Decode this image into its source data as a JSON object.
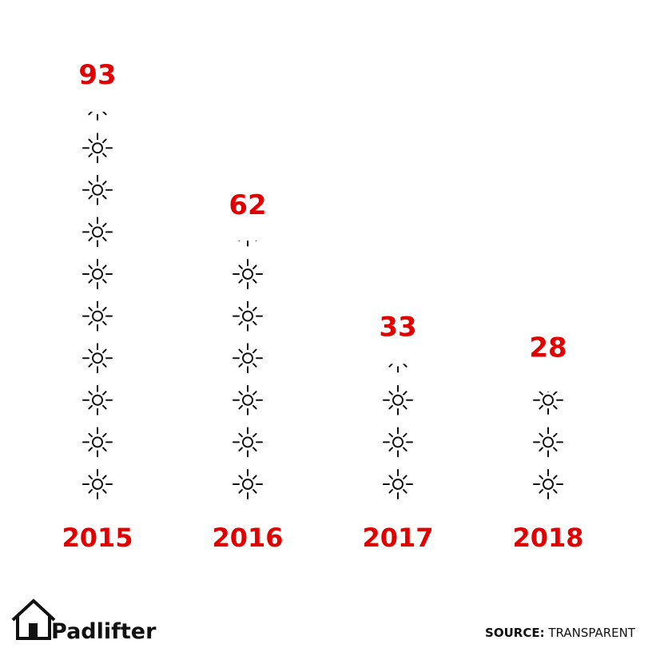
{
  "chart_data": {
    "type": "pictogram",
    "categories": [
      "2015",
      "2016",
      "2017",
      "2018"
    ],
    "values": [
      93,
      62,
      33,
      28
    ],
    "color": "#e00000",
    "icon_color": "#111111"
  },
  "footer": {
    "brand": "Padlifter",
    "source_label": "SOURCE:",
    "source": "TRANSPARENT"
  }
}
